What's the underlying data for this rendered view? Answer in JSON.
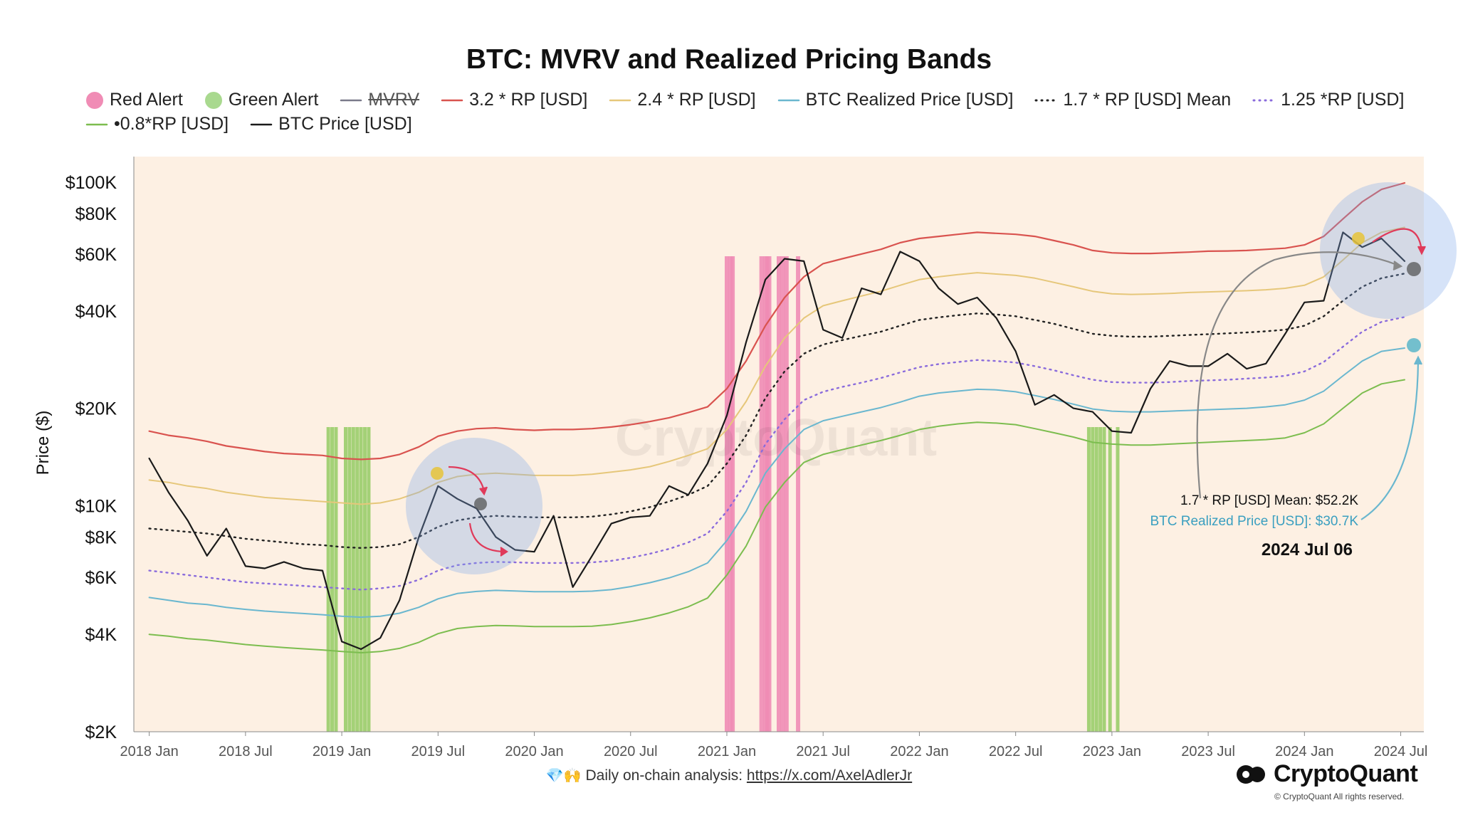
{
  "chart_data": {
    "type": "line",
    "title": "BTC: MVRV and Realized Pricing Bands",
    "ylabel": "Price ($)",
    "yscale": "log",
    "ylim": [
      2000,
      120000
    ],
    "y_ticks": [
      {
        "v": 2000,
        "label": "$2K"
      },
      {
        "v": 4000,
        "label": "$4K"
      },
      {
        "v": 6000,
        "label": "$6K"
      },
      {
        "v": 8000,
        "label": "$8K"
      },
      {
        "v": 10000,
        "label": "$10K"
      },
      {
        "v": 20000,
        "label": "$20K"
      },
      {
        "v": 40000,
        "label": "$40K"
      },
      {
        "v": 60000,
        "label": "$60K"
      },
      {
        "v": 80000,
        "label": "$80K"
      },
      {
        "v": 100000,
        "label": "$100K"
      }
    ],
    "x_start": 2017.92,
    "x_end": 2024.62,
    "x_ticks": [
      {
        "t": 2018.0,
        "label": "2018 Jan"
      },
      {
        "t": 2018.5,
        "label": "2018 Jul"
      },
      {
        "t": 2019.0,
        "label": "2019 Jan"
      },
      {
        "t": 2019.5,
        "label": "2019 Jul"
      },
      {
        "t": 2020.0,
        "label": "2020 Jan"
      },
      {
        "t": 2020.5,
        "label": "2020 Jul"
      },
      {
        "t": 2021.0,
        "label": "2021 Jan"
      },
      {
        "t": 2021.5,
        "label": "2021 Jul"
      },
      {
        "t": 2022.0,
        "label": "2022 Jan"
      },
      {
        "t": 2022.5,
        "label": "2022 Jul"
      },
      {
        "t": 2023.0,
        "label": "2023 Jan"
      },
      {
        "t": 2023.5,
        "label": "2023 Jul"
      },
      {
        "t": 2024.0,
        "label": "2024 Jan"
      },
      {
        "t": 2024.5,
        "label": "2024 Jul"
      }
    ],
    "x": [
      2018.0,
      2018.1,
      2018.2,
      2018.3,
      2018.4,
      2018.5,
      2018.6,
      2018.7,
      2018.8,
      2018.9,
      2019.0,
      2019.1,
      2019.2,
      2019.3,
      2019.4,
      2019.5,
      2019.6,
      2019.7,
      2019.8,
      2019.9,
      2020.0,
      2020.1,
      2020.2,
      2020.3,
      2020.4,
      2020.5,
      2020.6,
      2020.7,
      2020.8,
      2020.9,
      2021.0,
      2021.1,
      2021.2,
      2021.3,
      2021.4,
      2021.5,
      2021.6,
      2021.7,
      2021.8,
      2021.9,
      2022.0,
      2022.1,
      2022.2,
      2022.3,
      2022.4,
      2022.5,
      2022.6,
      2022.7,
      2022.8,
      2022.9,
      2023.0,
      2023.1,
      2023.2,
      2023.3,
      2023.4,
      2023.5,
      2023.6,
      2023.7,
      2023.8,
      2023.9,
      2024.0,
      2024.1,
      2024.2,
      2024.3,
      2024.4,
      2024.52
    ],
    "series": [
      {
        "name": "3.2 * RP [USD]",
        "color": "#d9534f",
        "dash": "",
        "width": 2.2,
        "values": [
          17000,
          16500,
          16200,
          15800,
          15300,
          15000,
          14700,
          14500,
          14400,
          14300,
          14000,
          13900,
          14000,
          14400,
          15200,
          16400,
          17000,
          17300,
          17400,
          17200,
          17100,
          17200,
          17200,
          17300,
          17500,
          17800,
          18200,
          18700,
          19400,
          20200,
          23000,
          28000,
          36000,
          44000,
          51000,
          56000,
          58000,
          60000,
          62000,
          65000,
          67000,
          68000,
          69000,
          70000,
          69500,
          69000,
          68000,
          66000,
          64000,
          61500,
          60500,
          60200,
          60200,
          60500,
          60800,
          61200,
          61300,
          61500,
          62000,
          62500,
          64000,
          68000,
          77000,
          87000,
          95000,
          99500
        ]
      },
      {
        "name": "2.4 * RP [USD]",
        "color": "#e6c77a",
        "dash": "",
        "width": 2,
        "values": [
          12000,
          11800,
          11500,
          11300,
          11000,
          10800,
          10600,
          10500,
          10400,
          10300,
          10200,
          10100,
          10200,
          10500,
          11000,
          11800,
          12300,
          12500,
          12600,
          12500,
          12400,
          12400,
          12400,
          12500,
          12700,
          12900,
          13200,
          13700,
          14300,
          15000,
          17200,
          21000,
          27000,
          33000,
          38000,
          41500,
          43000,
          44500,
          46000,
          48000,
          50000,
          51000,
          51800,
          52500,
          52000,
          51500,
          50500,
          49000,
          47500,
          46000,
          45200,
          45000,
          45100,
          45300,
          45600,
          45800,
          46000,
          46200,
          46500,
          47000,
          48000,
          51000,
          57500,
          65000,
          70000,
          72500
        ]
      },
      {
        "name": "1.7 * RP [USD] Mean",
        "color": "#222222",
        "dash": "2 6",
        "width": 2.4,
        "values": [
          8500,
          8400,
          8300,
          8200,
          8050,
          7900,
          7800,
          7700,
          7600,
          7550,
          7450,
          7400,
          7450,
          7600,
          8000,
          8600,
          9000,
          9200,
          9300,
          9250,
          9200,
          9200,
          9200,
          9250,
          9400,
          9600,
          9900,
          10300,
          10800,
          11500,
          13500,
          16500,
          21500,
          26000,
          29500,
          31500,
          32500,
          33500,
          34500,
          36000,
          37500,
          38200,
          38800,
          39300,
          39000,
          38500,
          37500,
          36500,
          35200,
          34000,
          33500,
          33300,
          33300,
          33500,
          33700,
          33900,
          34100,
          34300,
          34600,
          35000,
          36000,
          38500,
          43000,
          47500,
          50500,
          52200
        ]
      },
      {
        "name": "1.25 *RP [USD]",
        "color": "#8a6bdc",
        "dash": "2 6",
        "width": 2.4,
        "values": [
          6300,
          6200,
          6100,
          6000,
          5900,
          5800,
          5750,
          5700,
          5650,
          5600,
          5550,
          5500,
          5550,
          5650,
          5900,
          6300,
          6550,
          6650,
          6700,
          6680,
          6650,
          6650,
          6650,
          6680,
          6750,
          6900,
          7100,
          7350,
          7700,
          8200,
          9600,
          11800,
          15500,
          18500,
          21200,
          22500,
          23300,
          24000,
          24800,
          25800,
          26800,
          27400,
          27800,
          28200,
          28000,
          27700,
          27000,
          26200,
          25300,
          24500,
          24100,
          24000,
          24000,
          24100,
          24300,
          24400,
          24500,
          24700,
          24900,
          25200,
          26000,
          27800,
          31000,
          34500,
          37000,
          38300
        ]
      },
      {
        "name": "BTC Realized Price [USD]",
        "color": "#6ab7cf",
        "dash": "",
        "width": 2,
        "values": [
          5200,
          5100,
          5000,
          4950,
          4850,
          4780,
          4720,
          4680,
          4640,
          4600,
          4550,
          4520,
          4550,
          4650,
          4850,
          5150,
          5350,
          5430,
          5470,
          5450,
          5420,
          5420,
          5420,
          5440,
          5500,
          5620,
          5780,
          5980,
          6250,
          6650,
          7800,
          9600,
          12600,
          15000,
          17200,
          18300,
          18900,
          19500,
          20100,
          20900,
          21800,
          22300,
          22600,
          22900,
          22800,
          22500,
          21900,
          21300,
          20600,
          19900,
          19600,
          19500,
          19500,
          19600,
          19700,
          19800,
          19900,
          20000,
          20200,
          20500,
          21200,
          22600,
          25200,
          28000,
          30000,
          30700
        ]
      },
      {
        "name": "0.8*RP [USD]",
        "color": "#7cbd4f",
        "dash": "",
        "width": 2,
        "values": [
          4000,
          3950,
          3880,
          3840,
          3780,
          3720,
          3680,
          3640,
          3610,
          3580,
          3540,
          3510,
          3540,
          3620,
          3780,
          4020,
          4170,
          4230,
          4260,
          4250,
          4230,
          4230,
          4230,
          4240,
          4290,
          4380,
          4500,
          4660,
          4870,
          5180,
          6100,
          7500,
          9900,
          11800,
          13600,
          14400,
          14900,
          15400,
          15900,
          16500,
          17200,
          17600,
          17900,
          18100,
          18000,
          17800,
          17300,
          16800,
          16300,
          15700,
          15500,
          15400,
          15400,
          15500,
          15600,
          15700,
          15800,
          15900,
          16000,
          16200,
          16800,
          17900,
          20000,
          22300,
          23800,
          24500
        ]
      },
      {
        "name": "BTC Price [USD]",
        "color": "#1a1a1a",
        "dash": "",
        "width": 2.2,
        "values": [
          14000,
          11000,
          9000,
          7000,
          8500,
          6500,
          6400,
          6700,
          6400,
          6300,
          3800,
          3600,
          3900,
          5100,
          8000,
          11500,
          10500,
          9800,
          8000,
          7300,
          7200,
          9300,
          5600,
          7000,
          8800,
          9200,
          9300,
          11500,
          10800,
          13500,
          19000,
          32000,
          50000,
          58000,
          57000,
          35000,
          33000,
          47000,
          45000,
          61000,
          57000,
          47000,
          42000,
          44000,
          38000,
          30000,
          20500,
          22000,
          20000,
          19500,
          17000,
          16800,
          23000,
          28000,
          27000,
          27000,
          29500,
          26500,
          27500,
          34000,
          42500,
          43000,
          70000,
          63000,
          67000,
          57000
        ]
      }
    ],
    "red_alert_bars": [
      2021.0,
      2021.02,
      2021.03,
      2021.18,
      2021.2,
      2021.21,
      2021.22,
      2021.27,
      2021.29,
      2021.31,
      2021.37
    ],
    "green_alert_bars": [
      2018.93,
      2018.95,
      2018.97,
      2019.02,
      2019.04,
      2019.06,
      2019.08,
      2019.1,
      2019.12,
      2019.14,
      2022.88,
      2022.9,
      2022.92,
      2022.94,
      2022.96,
      2022.99,
      2023.03
    ],
    "legend": [
      {
        "label": "Red Alert",
        "kind": "circle",
        "color": "#f08cb5"
      },
      {
        "label": "Green Alert",
        "kind": "circle",
        "color": "#a9d98f"
      },
      {
        "label": "MVRV",
        "kind": "line",
        "color": "#7a7a8a",
        "struck": true
      },
      {
        "label": "3.2 * RP [USD]",
        "kind": "line",
        "color": "#d9534f"
      },
      {
        "label": "2.4 * RP [USD]",
        "kind": "line",
        "color": "#e6c77a"
      },
      {
        "label": "BTC Realized Price [USD]",
        "kind": "line",
        "color": "#6ab7cf"
      },
      {
        "label": "1.7 * RP [USD] Mean",
        "kind": "dots",
        "color": "#222222"
      },
      {
        "label": "1.25 *RP [USD]",
        "kind": "dots",
        "color": "#8a6bdc"
      },
      {
        "label": "•0.8*RP [USD]",
        "kind": "line",
        "color": "#7cbd4f"
      },
      {
        "label": "BTC Price [USD]",
        "kind": "line",
        "color": "#1a1a1a"
      }
    ],
    "annotations": {
      "mean_label": "1.7 * RP [USD] Mean: $52.2K",
      "realized_label": "BTC Realized Price [USD]: $30.7K",
      "date_label": "2024 Jul 06",
      "watermark": "CryptoQuant"
    }
  },
  "footer": {
    "gems": "💎🙌",
    "text": "Daily on-chain analysis:",
    "link": "https://x.com/AxelAdlerJr"
  },
  "brand": {
    "name": "CryptoQuant",
    "copyright": "© CryptoQuant All rights reserved."
  }
}
